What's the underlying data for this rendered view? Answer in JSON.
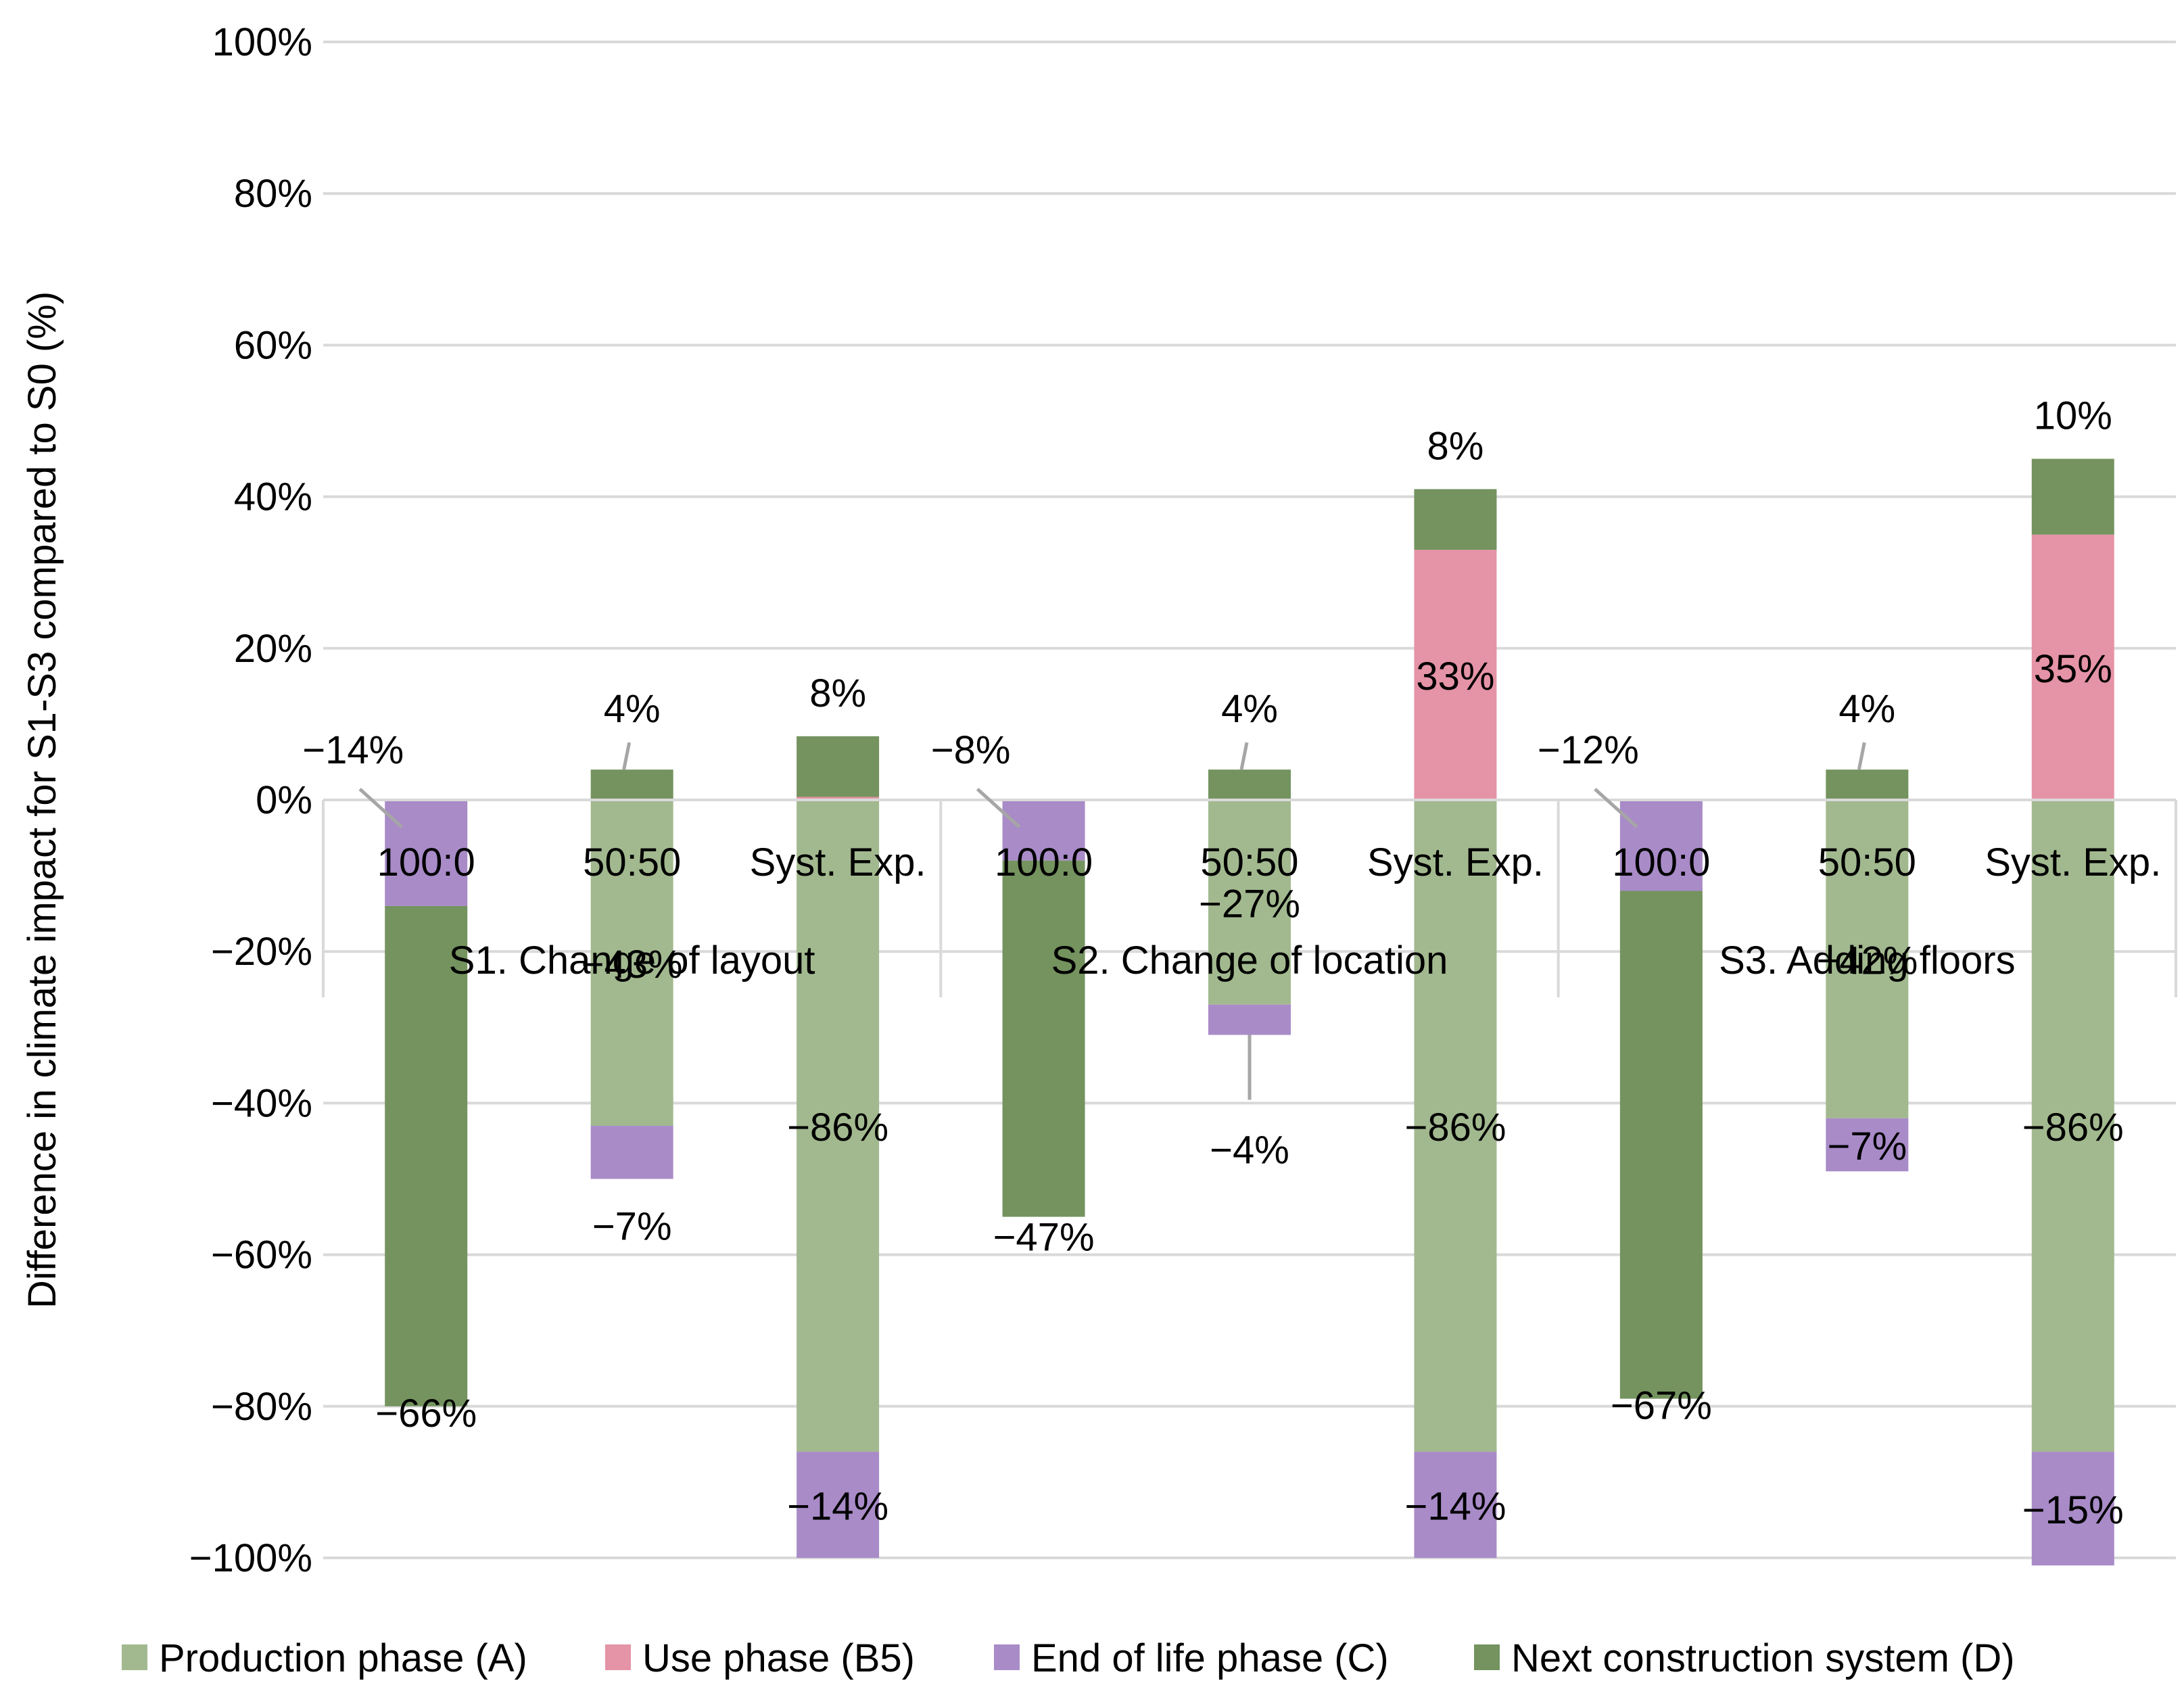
{
  "chart_data": {
    "type": "bar",
    "stacked": true,
    "ylabel": "Difference in climate impact for S1-S3 compared to S0 (%)",
    "ylim": [
      -100,
      100
    ],
    "yticks": [
      100,
      80,
      60,
      40,
      20,
      0,
      -20,
      -40,
      -60,
      -80,
      -100
    ],
    "ytick_labels": [
      "100%",
      "80%",
      "60%",
      "40%",
      "20%",
      "0%",
      "−20%",
      "−40%",
      "−60%",
      "−80%",
      "−100%"
    ],
    "groups": [
      "S1. Change of layout",
      "S2. Change of location",
      "S3. Adding floors"
    ],
    "categories": [
      "100:0",
      "50:50",
      "Syst. Exp.",
      "100:0",
      "50:50",
      "Syst. Exp.",
      "100:0",
      "50:50",
      "Syst. Exp."
    ],
    "series": [
      {
        "name": "Production phase (A)",
        "color": "#a2b98f",
        "values": [
          0,
          -43,
          -86,
          0,
          -27,
          -86,
          0,
          -42,
          -86
        ],
        "labels": [
          "",
          "−43%",
          "−86%",
          "",
          "−27%",
          "−86%",
          "",
          "−42%",
          "−86%"
        ]
      },
      {
        "name": "Use phase (B5)",
        "color": "#e593a6",
        "values": [
          0,
          0,
          0.4,
          0,
          0,
          33,
          0,
          0,
          35
        ],
        "labels": [
          "",
          "",
          "",
          "",
          "",
          "33%",
          "",
          "",
          "35%"
        ]
      },
      {
        "name": "End of life phase (C)",
        "color": "#a98bc8",
        "values": [
          -14,
          -7,
          -14,
          -8,
          -4,
          -14,
          -12,
          -7,
          -15
        ],
        "labels": [
          "−14%",
          "−7%",
          "−14%",
          "−8%",
          "−4%",
          "−14%",
          "−12%",
          "−7%",
          "−15%"
        ]
      },
      {
        "name": "Next construction system (D)",
        "color": "#74935f",
        "values": [
          -66,
          4,
          8,
          -47,
          4,
          8,
          -67,
          4,
          10
        ],
        "labels": [
          "−66%",
          "4%",
          "8%",
          "−47%",
          "4%",
          "8%",
          "−67%",
          "4%",
          "10%"
        ]
      }
    ]
  }
}
